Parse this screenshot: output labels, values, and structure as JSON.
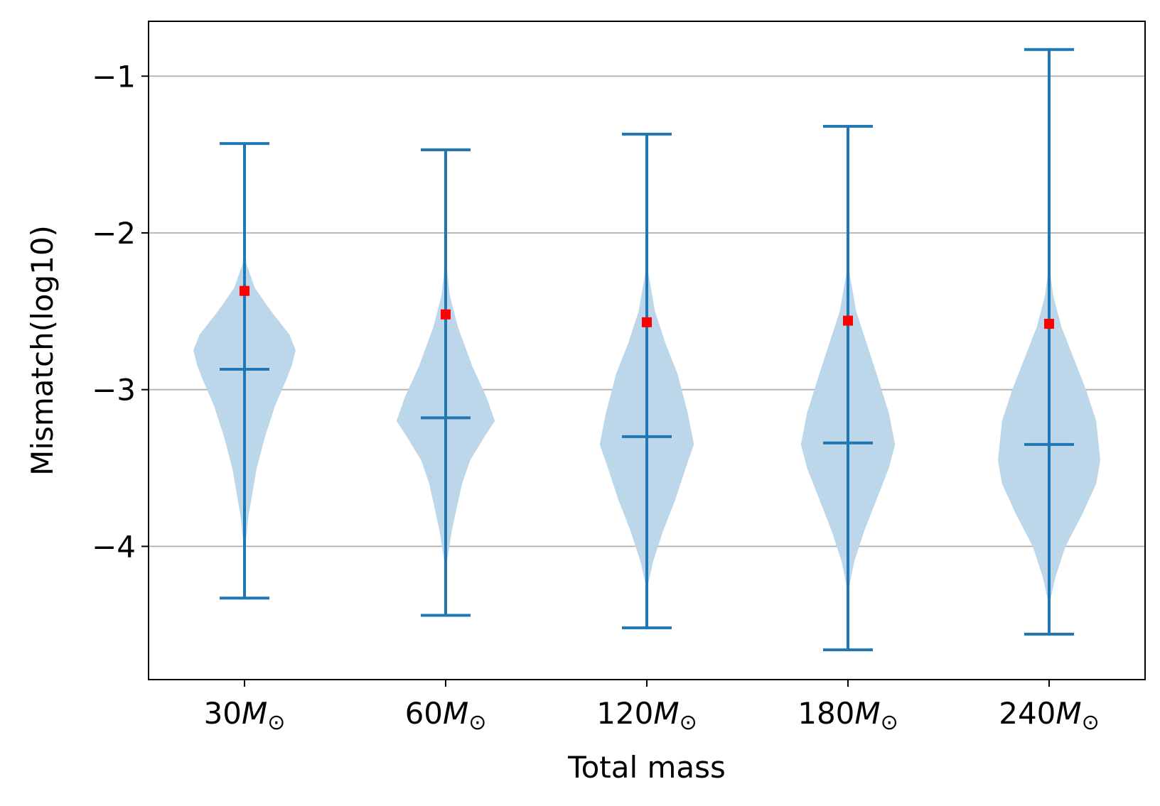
{
  "chart_data": {
    "type": "violin",
    "title": "",
    "xlabel": "Total mass",
    "ylabel": "Mismatch(log10)",
    "ylim": [
      -4.85,
      -0.65
    ],
    "yticks": [
      -4,
      -3,
      -2,
      -1
    ],
    "ytick_labels": [
      "−4",
      "−3",
      "−2",
      "−1"
    ],
    "grid": "y",
    "categories": [
      {
        "num": "30",
        "unit": "M",
        "sub": "⊙"
      },
      {
        "num": "60",
        "unit": "M",
        "sub": "⊙"
      },
      {
        "num": "120",
        "unit": "M",
        "sub": "⊙"
      },
      {
        "num": "180",
        "unit": "M",
        "sub": "⊙"
      },
      {
        "num": "240",
        "unit": "M",
        "sub": "⊙"
      }
    ],
    "series": [
      {
        "name": "30",
        "min": -4.33,
        "max": -1.43,
        "median": -2.87,
        "marker": -2.37,
        "profile": [
          [
            -4.05,
            0.0
          ],
          [
            -3.8,
            0.02
          ],
          [
            -3.5,
            0.06
          ],
          [
            -3.3,
            0.1
          ],
          [
            -3.1,
            0.15
          ],
          [
            -2.95,
            0.2
          ],
          [
            -2.85,
            0.23
          ],
          [
            -2.75,
            0.25
          ],
          [
            -2.65,
            0.22
          ],
          [
            -2.5,
            0.13
          ],
          [
            -2.35,
            0.05
          ],
          [
            -2.2,
            0.01
          ],
          [
            -2.05,
            0.0
          ]
        ]
      },
      {
        "name": "60",
        "min": -4.44,
        "max": -1.47,
        "median": -3.18,
        "marker": -2.52,
        "profile": [
          [
            -4.15,
            0.0
          ],
          [
            -3.9,
            0.03
          ],
          [
            -3.6,
            0.08
          ],
          [
            -3.45,
            0.12
          ],
          [
            -3.3,
            0.19
          ],
          [
            -3.2,
            0.24
          ],
          [
            -3.05,
            0.2
          ],
          [
            -2.85,
            0.13
          ],
          [
            -2.6,
            0.06
          ],
          [
            -2.4,
            0.02
          ],
          [
            -2.15,
            0.0
          ]
        ]
      },
      {
        "name": "120",
        "min": -4.52,
        "max": -1.37,
        "median": -3.3,
        "marker": -2.57,
        "profile": [
          [
            -4.28,
            0.0
          ],
          [
            -4.1,
            0.03
          ],
          [
            -3.9,
            0.08
          ],
          [
            -3.7,
            0.14
          ],
          [
            -3.5,
            0.19
          ],
          [
            -3.35,
            0.23
          ],
          [
            -3.15,
            0.2
          ],
          [
            -2.9,
            0.15
          ],
          [
            -2.7,
            0.09
          ],
          [
            -2.5,
            0.04
          ],
          [
            -2.2,
            0.0
          ]
        ]
      },
      {
        "name": "180",
        "min": -4.66,
        "max": -1.32,
        "median": -3.34,
        "marker": -2.56,
        "profile": [
          [
            -4.3,
            0.0
          ],
          [
            -4.1,
            0.03
          ],
          [
            -3.9,
            0.08
          ],
          [
            -3.7,
            0.14
          ],
          [
            -3.5,
            0.2
          ],
          [
            -3.35,
            0.23
          ],
          [
            -3.15,
            0.2
          ],
          [
            -2.9,
            0.14
          ],
          [
            -2.7,
            0.09
          ],
          [
            -2.5,
            0.04
          ],
          [
            -2.2,
            0.0
          ]
        ]
      },
      {
        "name": "240",
        "min": -4.56,
        "max": -0.83,
        "median": -3.35,
        "marker": -2.58,
        "profile": [
          [
            -4.38,
            0.0
          ],
          [
            -4.2,
            0.03
          ],
          [
            -4.0,
            0.08
          ],
          [
            -3.8,
            0.16
          ],
          [
            -3.6,
            0.23
          ],
          [
            -3.45,
            0.25
          ],
          [
            -3.2,
            0.23
          ],
          [
            -3.0,
            0.18
          ],
          [
            -2.8,
            0.12
          ],
          [
            -2.6,
            0.06
          ],
          [
            -2.4,
            0.02
          ],
          [
            -2.2,
            0.0
          ]
        ]
      }
    ],
    "colors": {
      "line": "#1f77b4",
      "fill": "#bcd6ea",
      "marker": "#ff0000",
      "grid": "#b0b0b0",
      "axis": "#000000"
    }
  }
}
